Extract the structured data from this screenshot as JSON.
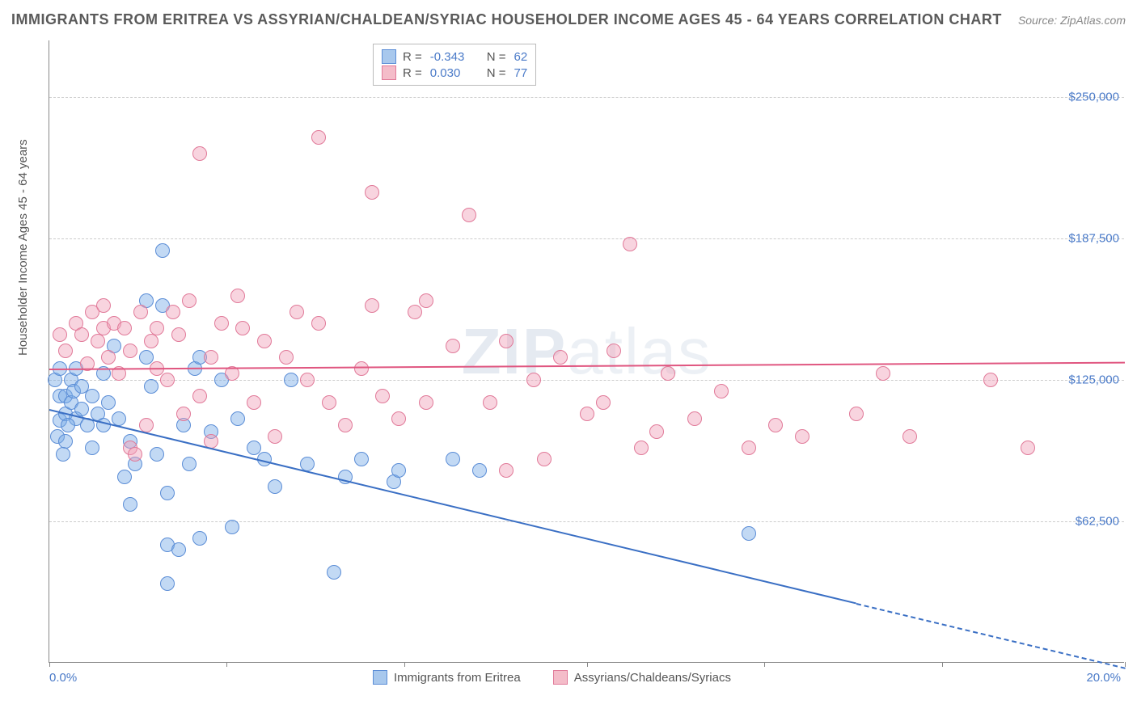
{
  "title": "IMMIGRANTS FROM ERITREA VS ASSYRIAN/CHALDEAN/SYRIAC HOUSEHOLDER INCOME AGES 45 - 64 YEARS CORRELATION CHART",
  "source": "Source: ZipAtlas.com",
  "ylabel": "Householder Income Ages 45 - 64 years",
  "watermark_main": "ZIP",
  "watermark_sub": "atlas",
  "chart": {
    "type": "scatter",
    "xlim": [
      0,
      20
    ],
    "ylim": [
      0,
      275000
    ],
    "x_tick_positions": [
      0,
      3.3,
      6.6,
      10,
      13.3,
      16.6,
      20
    ],
    "x_tick_labels_shown": {
      "left": "0.0%",
      "right": "20.0%"
    },
    "y_ticks": [
      {
        "value": 62500,
        "label": "$62,500"
      },
      {
        "value": 125000,
        "label": "$125,000"
      },
      {
        "value": 187500,
        "label": "$187,500"
      },
      {
        "value": 250000,
        "label": "$250,000"
      }
    ],
    "background_color": "#ffffff",
    "grid_color": "#cccccc",
    "axis_color": "#888888",
    "point_radius": 9
  },
  "legend_top": [
    {
      "swatch_fill": "#a8c8ed",
      "swatch_border": "#5b8dd6",
      "r_label": "R =",
      "r_value": "-0.343",
      "n_label": "N =",
      "n_value": "62"
    },
    {
      "swatch_fill": "#f4bcc9",
      "swatch_border": "#e17a99",
      "r_label": "R =",
      "r_value": "0.030",
      "n_label": "N =",
      "n_value": "77"
    }
  ],
  "legend_bottom": [
    {
      "swatch_fill": "#a8c8ed",
      "swatch_border": "#5b8dd6",
      "label": "Immigrants from Eritrea"
    },
    {
      "swatch_fill": "#f4bcc9",
      "swatch_border": "#e17a99",
      "label": "Assyrians/Chaldeans/Syriacs"
    }
  ],
  "series": [
    {
      "name": "Immigrants from Eritrea",
      "fill": "rgba(120,170,230,0.45)",
      "stroke": "#5b8dd6",
      "trend": {
        "x1": 0,
        "y1": 112000,
        "x2": 20,
        "y2": -2000,
        "solid_until_x": 15,
        "color": "#3a6fc4",
        "width": 2
      },
      "points": [
        [
          0.1,
          125000
        ],
        [
          0.2,
          118000
        ],
        [
          0.2,
          107000
        ],
        [
          0.15,
          100000
        ],
        [
          0.3,
          110000
        ],
        [
          0.3,
          118000
        ],
        [
          0.2,
          130000
        ],
        [
          0.4,
          125000
        ],
        [
          0.4,
          115000
        ],
        [
          0.5,
          108000
        ],
        [
          0.3,
          98000
        ],
        [
          0.25,
          92000
        ],
        [
          0.35,
          105000
        ],
        [
          0.45,
          120000
        ],
        [
          0.5,
          130000
        ],
        [
          0.6,
          112000
        ],
        [
          0.6,
          122000
        ],
        [
          0.7,
          105000
        ],
        [
          0.8,
          118000
        ],
        [
          0.8,
          95000
        ],
        [
          0.9,
          110000
        ],
        [
          1.0,
          128000
        ],
        [
          1.0,
          105000
        ],
        [
          1.1,
          115000
        ],
        [
          1.2,
          140000
        ],
        [
          1.3,
          108000
        ],
        [
          1.4,
          82000
        ],
        [
          1.5,
          98000
        ],
        [
          1.5,
          70000
        ],
        [
          1.6,
          88000
        ],
        [
          1.8,
          160000
        ],
        [
          1.8,
          135000
        ],
        [
          1.9,
          122000
        ],
        [
          2.0,
          92000
        ],
        [
          2.1,
          158000
        ],
        [
          2.1,
          182000
        ],
        [
          2.2,
          75000
        ],
        [
          2.2,
          52000
        ],
        [
          2.4,
          50000
        ],
        [
          2.5,
          105000
        ],
        [
          2.6,
          88000
        ],
        [
          2.7,
          130000
        ],
        [
          2.8,
          135000
        ],
        [
          2.8,
          55000
        ],
        [
          3.0,
          102000
        ],
        [
          3.2,
          125000
        ],
        [
          3.4,
          60000
        ],
        [
          3.5,
          108000
        ],
        [
          3.8,
          95000
        ],
        [
          4.0,
          90000
        ],
        [
          4.2,
          78000
        ],
        [
          4.5,
          125000
        ],
        [
          4.8,
          88000
        ],
        [
          5.3,
          40000
        ],
        [
          5.5,
          82000
        ],
        [
          5.8,
          90000
        ],
        [
          6.4,
          80000
        ],
        [
          6.5,
          85000
        ],
        [
          7.5,
          90000
        ],
        [
          8.0,
          85000
        ],
        [
          13.0,
          57000
        ],
        [
          2.2,
          35000
        ]
      ]
    },
    {
      "name": "Assyrians/Chaldeans/Syriacs",
      "fill": "rgba(240,160,185,0.45)",
      "stroke": "#e17a99",
      "trend": {
        "x1": 0,
        "y1": 130000,
        "x2": 20,
        "y2": 133000,
        "solid_until_x": 20,
        "color": "#e05680",
        "width": 2
      },
      "points": [
        [
          0.2,
          145000
        ],
        [
          0.3,
          138000
        ],
        [
          0.5,
          150000
        ],
        [
          0.6,
          145000
        ],
        [
          0.7,
          132000
        ],
        [
          0.8,
          155000
        ],
        [
          0.9,
          142000
        ],
        [
          1.0,
          148000
        ],
        [
          1.0,
          158000
        ],
        [
          1.1,
          135000
        ],
        [
          1.2,
          150000
        ],
        [
          1.3,
          128000
        ],
        [
          1.4,
          148000
        ],
        [
          1.5,
          95000
        ],
        [
          1.5,
          138000
        ],
        [
          1.6,
          92000
        ],
        [
          1.7,
          155000
        ],
        [
          1.8,
          105000
        ],
        [
          1.9,
          142000
        ],
        [
          2.0,
          130000
        ],
        [
          2.0,
          148000
        ],
        [
          2.2,
          125000
        ],
        [
          2.3,
          155000
        ],
        [
          2.4,
          145000
        ],
        [
          2.5,
          110000
        ],
        [
          2.6,
          160000
        ],
        [
          2.8,
          118000
        ],
        [
          2.8,
          225000
        ],
        [
          3.0,
          135000
        ],
        [
          3.0,
          98000
        ],
        [
          3.2,
          150000
        ],
        [
          3.4,
          128000
        ],
        [
          3.5,
          162000
        ],
        [
          3.6,
          148000
        ],
        [
          3.8,
          115000
        ],
        [
          4.0,
          142000
        ],
        [
          4.2,
          100000
        ],
        [
          4.4,
          135000
        ],
        [
          4.6,
          155000
        ],
        [
          4.8,
          125000
        ],
        [
          5.0,
          232000
        ],
        [
          5.0,
          150000
        ],
        [
          5.2,
          115000
        ],
        [
          5.5,
          105000
        ],
        [
          5.8,
          130000
        ],
        [
          6.0,
          158000
        ],
        [
          6.0,
          208000
        ],
        [
          6.2,
          118000
        ],
        [
          6.5,
          108000
        ],
        [
          6.8,
          155000
        ],
        [
          7.0,
          115000
        ],
        [
          7.0,
          160000
        ],
        [
          7.5,
          140000
        ],
        [
          7.8,
          198000
        ],
        [
          8.2,
          115000
        ],
        [
          8.5,
          142000
        ],
        [
          8.5,
          85000
        ],
        [
          9.0,
          125000
        ],
        [
          9.2,
          90000
        ],
        [
          9.5,
          135000
        ],
        [
          10.0,
          110000
        ],
        [
          10.3,
          115000
        ],
        [
          10.5,
          138000
        ],
        [
          10.8,
          185000
        ],
        [
          11.0,
          95000
        ],
        [
          11.3,
          102000
        ],
        [
          11.5,
          128000
        ],
        [
          12.0,
          108000
        ],
        [
          12.5,
          120000
        ],
        [
          13.0,
          95000
        ],
        [
          13.5,
          105000
        ],
        [
          14.0,
          100000
        ],
        [
          15.0,
          110000
        ],
        [
          15.5,
          128000
        ],
        [
          16.0,
          100000
        ],
        [
          17.5,
          125000
        ],
        [
          18.2,
          95000
        ]
      ]
    }
  ]
}
